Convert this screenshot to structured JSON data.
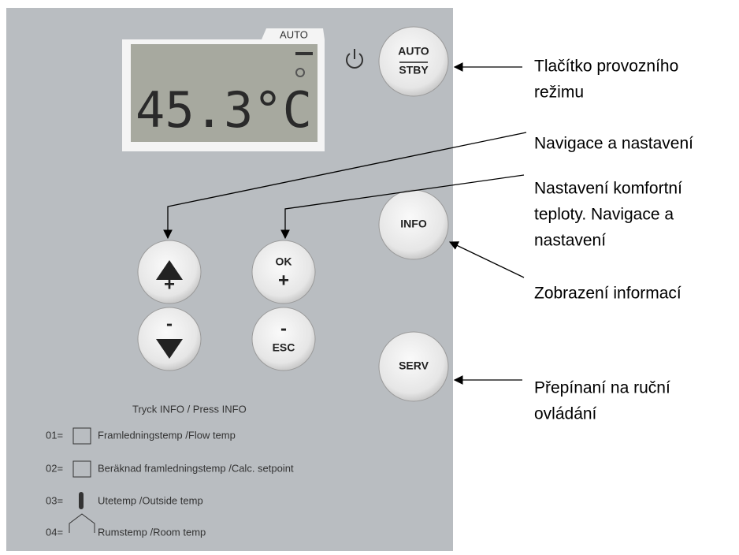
{
  "panel": {
    "display": {
      "mode": "AUTO",
      "reading": "45.3°C"
    },
    "buttons": [
      {
        "top": "AUTO",
        "bottom": "STBY"
      },
      {
        "top": "INFO"
      },
      {
        "top": "SERV"
      },
      {
        "bottom": "+"
      },
      {
        "top": "OK",
        "bottom": "+"
      },
      {
        "top": "-"
      },
      {
        "top": "-",
        "bottom": "ESC"
      }
    ],
    "legend": {
      "title": "Tryck INFO / Press INFO",
      "items": [
        {
          "code": "01=",
          "text": "Framledningstemp /Flow temp"
        },
        {
          "code": "02=",
          "text": "Beräknad framledningstemp /Calc. setpoint"
        },
        {
          "code": "03=",
          "text": "Utetemp /Outside temp"
        },
        {
          "code": "04=",
          "text": "Rumstemp /Room temp"
        }
      ]
    }
  },
  "annotations": [
    {
      "lines": [
        "Tlačítko provozního",
        "režimu"
      ]
    },
    {
      "lines": [
        "Navigace a nastavení"
      ]
    },
    {
      "lines": [
        "Nastavení komfortní",
        "teploty. Navigace a",
        "nastavení"
      ]
    },
    {
      "lines": [
        "Zobrazení informací"
      ]
    },
    {
      "lines": [
        "Přepínaní na ruční",
        "ovládání"
      ]
    }
  ]
}
